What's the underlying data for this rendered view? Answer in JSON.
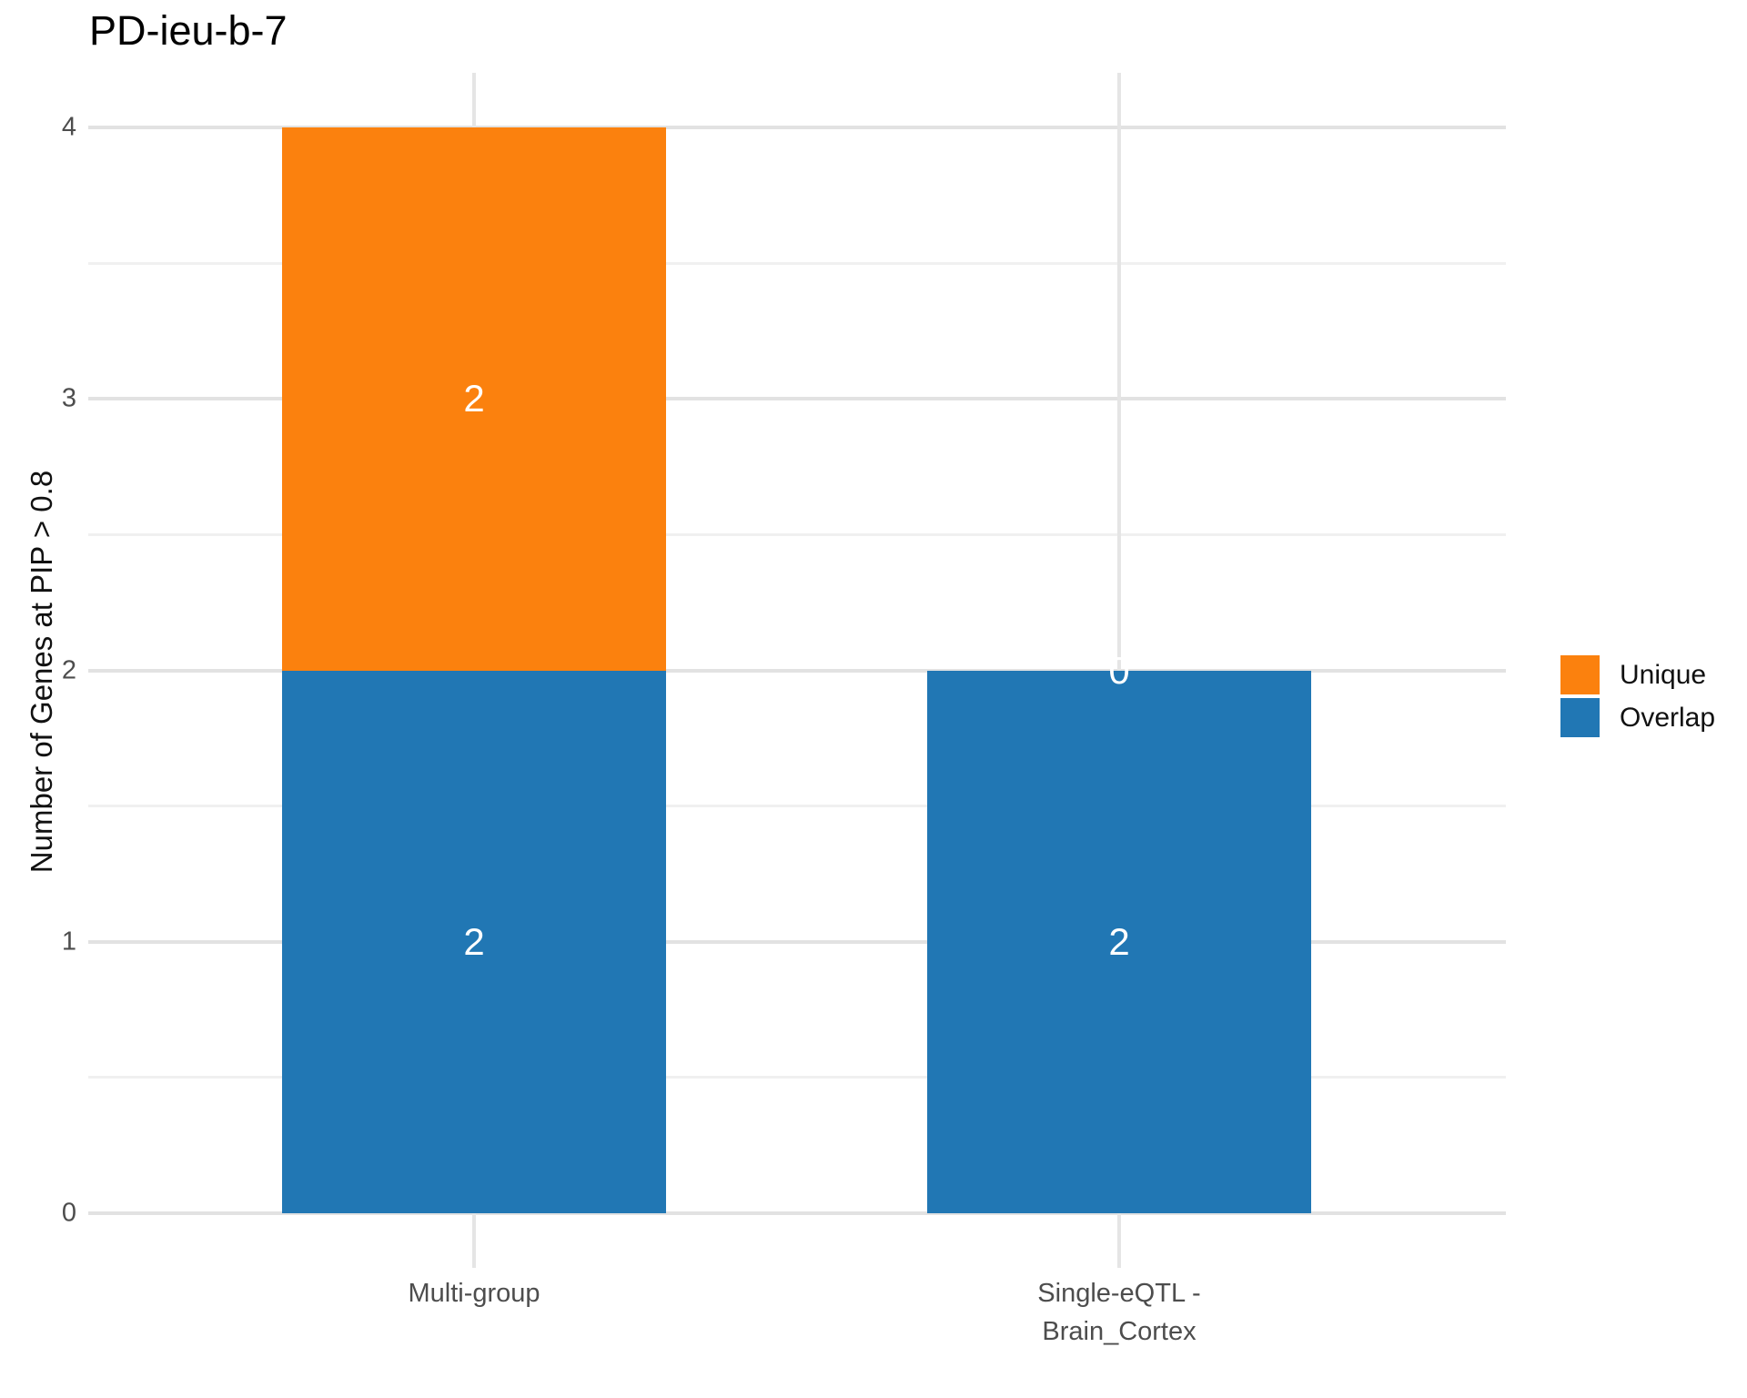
{
  "title": "PD-ieu-b-7",
  "chart_data": {
    "type": "bar",
    "stacked": true,
    "title": "PD-ieu-b-7",
    "xlabel": "",
    "ylabel": "Number of Genes at PIP > 0.8",
    "categories": [
      "Multi-group",
      "Single-eQTL -\nBrain_Cortex"
    ],
    "series": [
      {
        "name": "Overlap",
        "color": "#2177b4",
        "values": [
          2,
          2
        ]
      },
      {
        "name": "Unique",
        "color": "#fb810e",
        "values": [
          2,
          0
        ]
      }
    ],
    "totals": [
      4,
      2
    ],
    "value_labels": {
      "Multi-group": {
        "Unique": "2",
        "Overlap": "2"
      },
      "Single-eQTL-Brain_Cortex": {
        "Unique": "0",
        "Overlap": "2"
      }
    },
    "value_label_color": "#ffffff",
    "ylim": [
      0,
      4
    ],
    "yticks": [
      "0",
      "1",
      "2",
      "3",
      "4"
    ],
    "minor_grid": true,
    "grid": true,
    "legend": {
      "position": "right",
      "items": [
        {
          "label": "Unique",
          "color": "#fb810e"
        },
        {
          "label": "Overlap",
          "color": "#2177b4"
        }
      ]
    }
  }
}
